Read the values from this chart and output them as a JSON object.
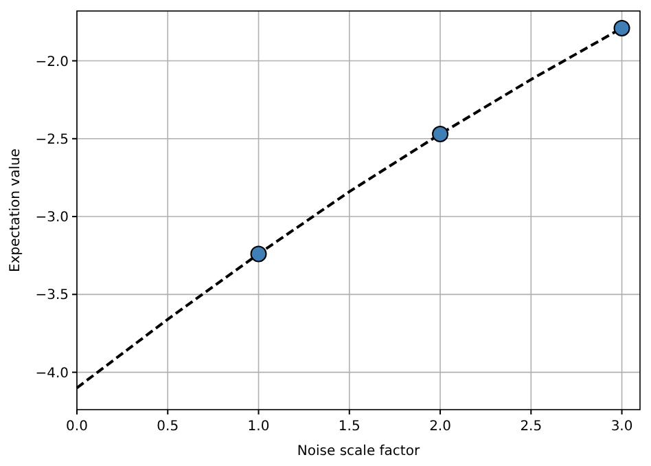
{
  "chart_data": {
    "type": "scatter",
    "xlabel": "Noise scale factor",
    "ylabel": "Expectation value",
    "xlim": [
      0,
      3.1
    ],
    "ylim": [
      -4.24,
      -1.68
    ],
    "xticks": [
      {
        "value": 0,
        "label": "0.0"
      },
      {
        "value": 0.5,
        "label": "0.5"
      },
      {
        "value": 1,
        "label": "1.0"
      },
      {
        "value": 1.5,
        "label": "1.5"
      },
      {
        "value": 2,
        "label": "2.0"
      },
      {
        "value": 2.5,
        "label": "2.5"
      },
      {
        "value": 3,
        "label": "3.0"
      }
    ],
    "yticks": [
      {
        "value": -4,
        "label": "−4.0"
      },
      {
        "value": -3.5,
        "label": "−3.5"
      },
      {
        "value": -3,
        "label": "−3.0"
      },
      {
        "value": -2.5,
        "label": "−2.5"
      },
      {
        "value": -2,
        "label": "−2.0"
      }
    ],
    "grid": true,
    "series": [
      {
        "type": "line",
        "color": "#000000",
        "line_style": "dashed",
        "marker": "none",
        "x": [
          0,
          0.5,
          1,
          1.5,
          2,
          2.5,
          3
        ],
        "values": [
          -4.1,
          -3.66,
          -3.24,
          -2.84,
          -2.47,
          -2.12,
          -1.79
        ]
      },
      {
        "color": "#3f7fb5",
        "marker": "circle",
        "x": [
          1,
          2,
          3
        ],
        "values": [
          -3.24,
          -2.47,
          -1.79
        ]
      }
    ]
  }
}
